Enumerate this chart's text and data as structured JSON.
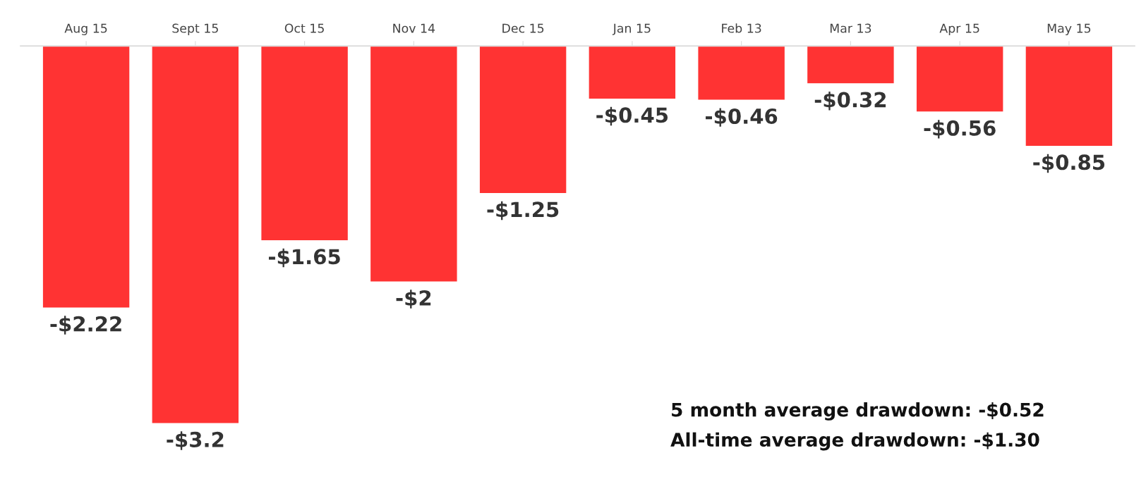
{
  "chart_data": {
    "type": "bar",
    "categories": [
      "Aug 15",
      "Sept 15",
      "Oct 15",
      "Nov 14",
      "Dec 15",
      "Jan 15",
      "Feb 13",
      "Mar 13",
      "Apr 15",
      "May 15"
    ],
    "values": [
      -2.22,
      -3.2,
      -1.65,
      -2,
      -1.25,
      -0.45,
      -0.46,
      -0.32,
      -0.56,
      -0.85
    ],
    "value_labels": [
      "-$2.22",
      "-$3.2",
      "-$1.65",
      "-$2",
      "-$1.25",
      "-$0.45",
      "-$0.46",
      "-$0.32",
      "-$0.56",
      "-$0.85"
    ],
    "color": "#ff3333",
    "grid": false,
    "legend": false,
    "annotations": [
      "5 month average drawdown: -$0.52",
      "All-time average drawdown: -$1.30"
    ]
  }
}
